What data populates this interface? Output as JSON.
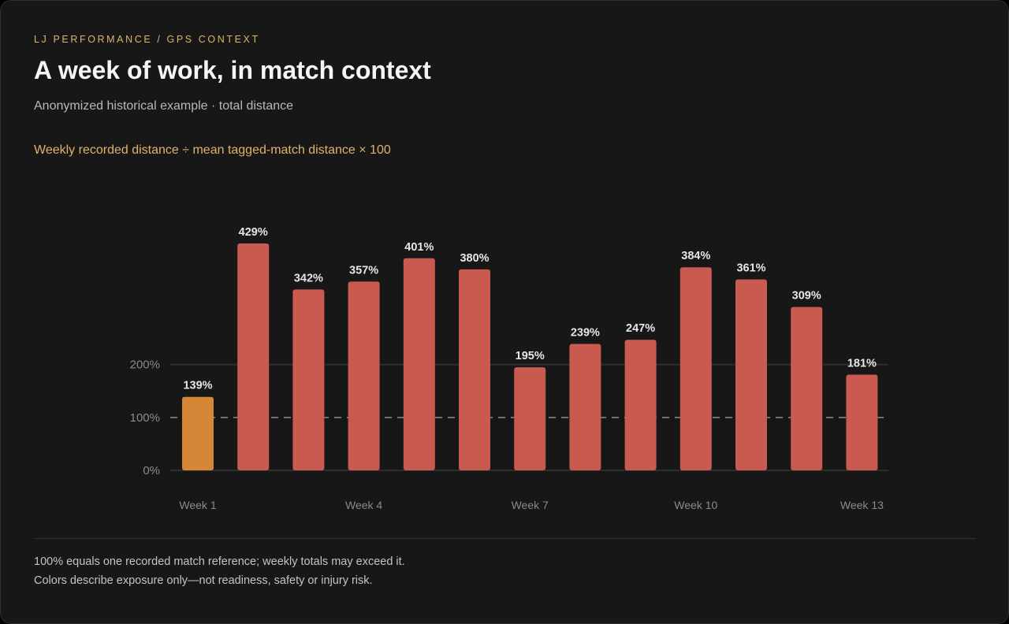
{
  "header": {
    "eyebrow": "LJ PERFORMANCE / GPS CONTEXT",
    "title": "A week of work, in match context",
    "subtitle": "Anonymized historical example · total distance",
    "formula": "Weekly recorded distance ÷ mean tagged-match distance × 100"
  },
  "footer": {
    "note_1": "100% equals one recorded match reference; weekly totals may exceed it.",
    "note_2": "Colors describe exposure only—not readiness, safety or injury risk."
  },
  "chart_data": {
    "type": "bar",
    "categories": [
      "Week 1",
      "Week 2",
      "Week 3",
      "Week 4",
      "Week 5",
      "Week 6",
      "Week 7",
      "Week 8",
      "Week 9",
      "Week 10",
      "Week 11",
      "Week 12",
      "Week 13"
    ],
    "x_tick_labels": [
      "Week 1",
      "",
      "",
      "Week 4",
      "",
      "",
      "Week 7",
      "",
      "",
      "Week 10",
      "",
      "",
      "Week 13"
    ],
    "values": [
      139,
      429,
      342,
      357,
      401,
      380,
      195,
      239,
      247,
      384,
      361,
      309,
      181
    ],
    "value_labels": [
      "139%",
      "429%",
      "342%",
      "357%",
      "401%",
      "380%",
      "195%",
      "239%",
      "247%",
      "384%",
      "361%",
      "309%",
      "181%"
    ],
    "y_ticks": [
      0,
      100,
      200
    ],
    "y_tick_labels": [
      "0%",
      "100%",
      "200%"
    ],
    "ylim": [
      0,
      429
    ],
    "reference_line": 100,
    "grid": true,
    "colors": {
      "at_or_below_150": "#d58637",
      "above_150": "#c95a50",
      "gridline": "#2e2e2e",
      "reference": "#8a8a8a",
      "value_label": "#e6e6e6",
      "axis_label": "#8a8a8a"
    }
  }
}
